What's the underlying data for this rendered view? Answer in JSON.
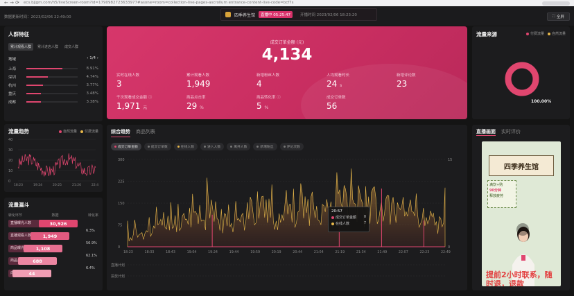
{
  "browser": {
    "nav": "←  →  ⟳",
    "url": "ecs.bjjgm.com/h5/liveScreen-room?id=1790982723633977#asone=room=collection-live-pages-ascrollum entrance-content-live-code=bcf7s"
  },
  "topbar": {
    "left_text": "数据更新时间：2023/02/06 22:49:00",
    "room_name": "四季养生馆",
    "live_badge": "直播中 05:25:47",
    "start_time": "开播时间 2023/02/06 18:23:20",
    "fullscreen_label": "全屏"
  },
  "crowd": {
    "title": "人群特征",
    "tabs": [
      "累计观看人群",
      "累计进店人群",
      "成交人群"
    ],
    "head_left": "地域",
    "head_right": "‹ 1/4 ›",
    "rows": [
      {
        "name": "上海",
        "pct": "8.91%",
        "ratio": 0.22
      },
      {
        "name": "深圳",
        "pct": "4.74%",
        "ratio": 0.13
      },
      {
        "name": "杭州",
        "pct": "3.77%",
        "ratio": 0.1
      },
      {
        "name": "重庆",
        "pct": "3.48%",
        "ratio": 0.09
      },
      {
        "name": "成都",
        "pct": "3.38%",
        "ratio": 0.09
      }
    ]
  },
  "trend_small": {
    "title": "流量趋势",
    "legend": [
      "自然流量",
      "付费流量"
    ],
    "yticks": [
      "40",
      "30",
      "20",
      "10",
      "0"
    ],
    "xticks": [
      "18:23",
      "19:24",
      "20:25",
      "21:26",
      "22:49"
    ]
  },
  "funnel": {
    "title": "流量漏斗",
    "head": [
      "转化环节",
      "数据",
      "转化率"
    ],
    "rows": [
      {
        "label": "直播曝光人数",
        "value": "30,926",
        "color": "#e0466f"
      },
      {
        "label": "直播观看人数",
        "value": "1,949",
        "color": "#e25a80"
      },
      {
        "label": "商品曝光人数",
        "value": "1,108",
        "color": "#e76f91"
      },
      {
        "label": "商品点击人数",
        "value": "688",
        "color": "#ec86a2"
      },
      {
        "label": "成交人数",
        "value": "44",
        "color": "#f09db3"
      }
    ],
    "rates": [
      "6.3%",
      "56.9%",
      "62.1%",
      "6.4%"
    ]
  },
  "kpi": {
    "main_label": "成交订单金额 (元)",
    "main_value": "4,134",
    "cells": [
      {
        "label": "实时在线人数",
        "value": "3",
        "unit": ""
      },
      {
        "label": "累计观看人数",
        "value": "1,949",
        "unit": ""
      },
      {
        "label": "新增粉丝人数",
        "value": "4",
        "unit": ""
      },
      {
        "label": "人均观看时长",
        "value": "24",
        "unit": "s"
      },
      {
        "label": "新增评论数",
        "value": "23",
        "unit": ""
      },
      {
        "label": "千次观看成交金额 ⓘ",
        "value": "1,971",
        "unit": "元"
      },
      {
        "label": "商品点击率",
        "value": "29",
        "unit": "%"
      },
      {
        "label": "商品转化率 ⓘ",
        "value": "5",
        "unit": "%"
      },
      {
        "label": "成交订单数",
        "value": "56",
        "unit": ""
      }
    ]
  },
  "main_chart": {
    "tabs": [
      "综合趋势",
      "商品列表"
    ],
    "chips": [
      "成交订单金额",
      "成交订单数",
      "在线人数",
      "进入人数",
      "离开人数",
      "新增粉丝",
      "评论次数"
    ],
    "yticks_left": [
      "300",
      "225",
      "150",
      "75",
      "0"
    ],
    "yticks_right": [
      "15",
      "0"
    ],
    "xticks": [
      "18:23",
      "18:33",
      "18:43",
      "19:04",
      "19:24",
      "19:44",
      "19:59",
      "20:19",
      "20:44",
      "21:04",
      "21:19",
      "21:34",
      "21:49",
      "22:07",
      "22:23",
      "22:49"
    ],
    "row_labels": [
      "直播计划",
      "投放计划"
    ],
    "tooltip": {
      "time": "20:57",
      "rows": [
        {
          "label": "成交订单金额",
          "value": "0",
          "color": "#e0466f"
        },
        {
          "label": "在线人数",
          "value": "7",
          "color": "#e8b84a"
        }
      ]
    }
  },
  "chart_data": {
    "type": "area",
    "title": "",
    "ylim": [
      0,
      300
    ],
    "y2lim": [
      0,
      15
    ],
    "x": [
      "18:23",
      "18:33",
      "18:43",
      "19:04",
      "19:24",
      "19:44",
      "19:59",
      "20:19",
      "20:44",
      "21:04",
      "21:19",
      "21:34",
      "21:49",
      "22:07",
      "22:23",
      "22:49"
    ],
    "series": [
      {
        "name": "在线人数",
        "axis": "right",
        "values": [
          1,
          2,
          4,
          5,
          6,
          3,
          8,
          5,
          7,
          6,
          9,
          8,
          7,
          6,
          4,
          5
        ]
      },
      {
        "name": "成交订单金额",
        "axis": "left",
        "values": [
          0,
          0,
          0,
          0,
          110,
          0,
          0,
          0,
          0,
          0,
          90,
          0,
          200,
          0,
          90,
          0
        ]
      }
    ]
  },
  "source": {
    "title": "流量来源",
    "legend": [
      "付费流量",
      "自然流量"
    ],
    "paid_share": 1.0,
    "donut_value": "100.00%"
  },
  "live": {
    "tabs": [
      "直播画面",
      "实时评价"
    ],
    "sign": "四季养生馆",
    "promo_lines": [
      "满饮+购",
      "90分钟",
      "释放疲劳"
    ],
    "caption": "提前2小时联系，随时退，退款"
  }
}
